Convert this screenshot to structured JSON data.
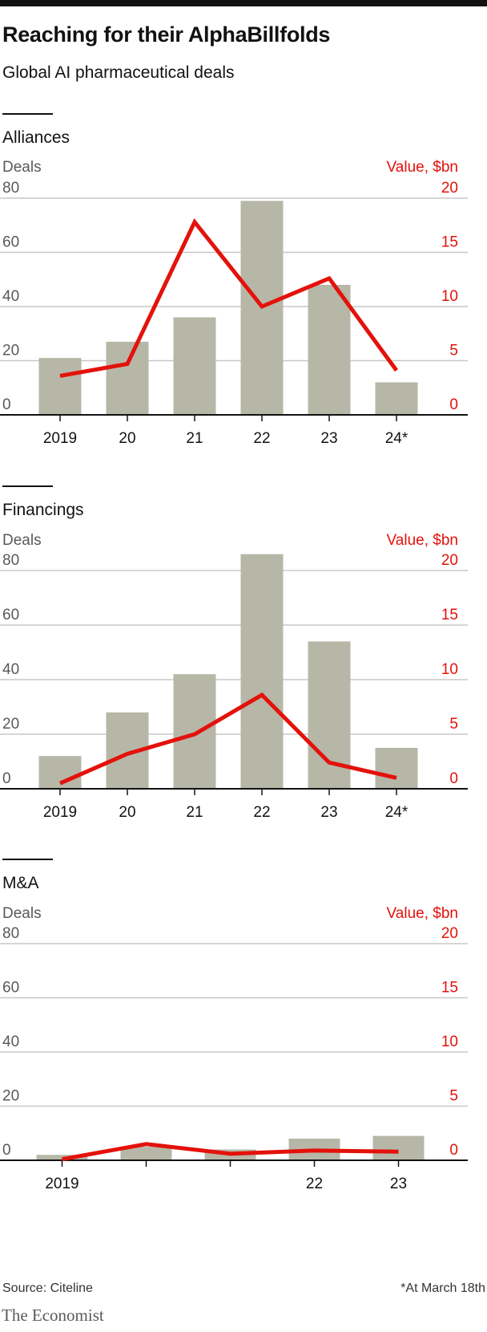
{
  "header": {
    "title": "Reaching for their AlphaBillfolds",
    "subtitle": "Global AI pharmaceutical deals"
  },
  "footer": {
    "source": "Source: Citeline",
    "footnote": "*At March 18th",
    "brand": "The Economist"
  },
  "colors": {
    "bars": "#b7b7a8",
    "line": "#e3120b",
    "grid": "#c8c8c8",
    "axis": "#121212",
    "left_axis_text": "#595959"
  },
  "chart_data": [
    {
      "type": "bar",
      "title": "Alliances",
      "ylabel_left": "Deals",
      "ylabel_right": "Value, $bn",
      "categories": [
        "2019",
        "20",
        "21",
        "22",
        "23",
        "24*"
      ],
      "y_left_ticks": [
        "0",
        "20",
        "40",
        "60",
        "80"
      ],
      "y_right_ticks": [
        "0",
        "5",
        "10",
        "15",
        "20"
      ],
      "ylim_left": [
        0,
        80
      ],
      "ylim_right": [
        0,
        20
      ],
      "grid": true,
      "series": [
        {
          "name": "Deals",
          "axis": "left",
          "kind": "bar",
          "values": [
            21,
            27,
            36,
            79,
            48,
            12
          ]
        },
        {
          "name": "Value, $bn",
          "axis": "right",
          "kind": "line",
          "values": [
            3.6,
            4.7,
            17.8,
            10.0,
            12.6,
            4.1
          ]
        }
      ]
    },
    {
      "type": "bar",
      "title": "Financings",
      "ylabel_left": "Deals",
      "ylabel_right": "Value, $bn",
      "categories": [
        "2019",
        "20",
        "21",
        "22",
        "23",
        "24*"
      ],
      "y_left_ticks": [
        "0",
        "20",
        "40",
        "60",
        "80"
      ],
      "y_right_ticks": [
        "0",
        "5",
        "10",
        "15",
        "20"
      ],
      "ylim_left": [
        0,
        80
      ],
      "ylim_right": [
        0,
        20
      ],
      "grid": true,
      "series": [
        {
          "name": "Deals",
          "axis": "left",
          "kind": "bar",
          "values": [
            12,
            28,
            42,
            86,
            54,
            15
          ]
        },
        {
          "name": "Value, $bn",
          "axis": "right",
          "kind": "line",
          "values": [
            0.5,
            3.2,
            5.0,
            8.6,
            2.4,
            1.0
          ]
        }
      ]
    },
    {
      "type": "bar",
      "title": "M&A",
      "ylabel_left": "Deals",
      "ylabel_right": "Value, $bn",
      "categories": [
        "2019",
        "",
        "",
        "22",
        "23"
      ],
      "y_left_ticks": [
        "0",
        "20",
        "40",
        "60",
        "80"
      ],
      "y_right_ticks": [
        "0",
        "5",
        "10",
        "15",
        "20"
      ],
      "ylim_left": [
        0,
        80
      ],
      "ylim_right": [
        0,
        20
      ],
      "grid": true,
      "series": [
        {
          "name": "Deals",
          "axis": "left",
          "kind": "bar",
          "values": [
            2,
            5,
            4,
            8,
            9
          ]
        },
        {
          "name": "Value, $bn",
          "axis": "right",
          "kind": "line",
          "values": [
            0.1,
            1.5,
            0.6,
            0.9,
            0.8
          ]
        }
      ]
    }
  ]
}
